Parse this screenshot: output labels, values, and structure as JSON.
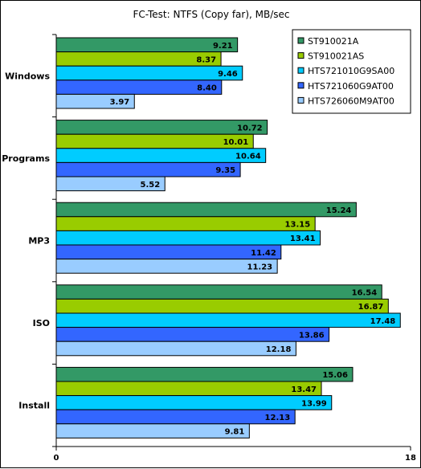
{
  "chart_data": {
    "type": "bar",
    "orientation": "horizontal",
    "title": "FC-Test: NTFS (Copy far), MB/sec",
    "categories": [
      "Windows",
      "Programs",
      "MP3",
      "ISO",
      "Install"
    ],
    "series": [
      {
        "name": "ST910021A",
        "color": "#339966",
        "values": [
          9.21,
          10.72,
          15.24,
          16.54,
          15.06
        ],
        "labels": [
          "9.21",
          "10.72",
          "15.24",
          "16.54",
          "15.06"
        ]
      },
      {
        "name": "ST910021AS",
        "color": "#99cc00",
        "values": [
          8.37,
          10.01,
          13.15,
          16.87,
          13.47
        ],
        "labels": [
          "8.37",
          "10.01",
          "13.15",
          "16.87",
          "13.47"
        ]
      },
      {
        "name": "HTS721010G9SA00",
        "color": "#00ccff",
        "values": [
          9.46,
          10.64,
          13.41,
          17.48,
          13.99
        ],
        "labels": [
          "9.46",
          "10.64",
          "13.41",
          "17.48",
          "13.99"
        ]
      },
      {
        "name": "HTS721060G9AT00",
        "color": "#3366ff",
        "values": [
          8.4,
          9.35,
          11.42,
          13.86,
          12.13
        ],
        "labels": [
          "8.40",
          "9.35",
          "11.42",
          "13.86",
          "12.13"
        ]
      },
      {
        "name": "HTS726060M9AT00",
        "color": "#99ccff",
        "values": [
          3.97,
          5.52,
          11.23,
          12.18,
          9.81
        ],
        "labels": [
          "3.97",
          "5.52",
          "11.23",
          "12.18",
          "9.81"
        ]
      }
    ],
    "xlim": [
      0,
      18
    ],
    "xticks": [
      "0",
      "18"
    ],
    "grid": false,
    "legend_position": "top-right"
  }
}
